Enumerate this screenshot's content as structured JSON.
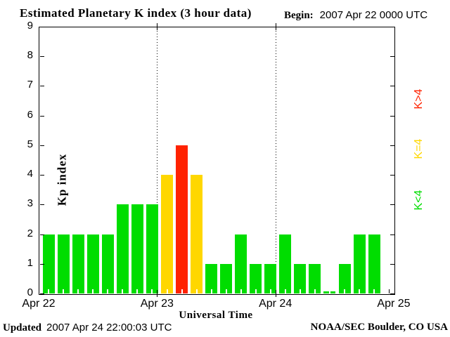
{
  "title": "Estimated Planetary K index (3 hour data)",
  "begin": {
    "label": "Begin:",
    "value": "2007 Apr 22 0000 UTC"
  },
  "axes": {
    "y_label": "Kp index",
    "x_label": "Universal Time",
    "y_ticks": [
      "0",
      "1",
      "2",
      "3",
      "4",
      "5",
      "6",
      "7",
      "8",
      "9"
    ],
    "x_ticks": [
      "Apr 22",
      "Apr 23",
      "Apr 24",
      "Apr 25"
    ]
  },
  "legend": [
    {
      "label": "K>4",
      "color": "#ff2200"
    },
    {
      "label": "K=4",
      "color": "#ffd700"
    },
    {
      "label": "K<4",
      "color": "#00dd00"
    }
  ],
  "colors": {
    "green": "#00dd00",
    "yellow": "#ffd700",
    "red": "#ff2200",
    "frame": "#000000",
    "background": "#ffffff"
  },
  "footer": {
    "updated_label": "Updated",
    "updated_value": "2007 Apr 24 22:00:03 UTC",
    "credit": "NOAA/SEC Boulder, CO USA"
  },
  "chart_data": {
    "type": "bar",
    "title": "Estimated Planetary K index (3 hour data)",
    "begin": "2007 Apr 22 0000 UTC",
    "interval_hours": 3,
    "bars_per_day": 8,
    "days": [
      "Apr 22",
      "Apr 23",
      "Apr 24"
    ],
    "values": [
      2,
      2,
      2,
      2,
      2,
      3,
      3,
      3,
      4,
      5,
      4,
      1,
      1,
      2,
      1,
      1,
      2,
      1,
      1,
      0,
      1,
      2,
      2
    ],
    "ylabel": "Kp index",
    "xlabel": "Universal Time",
    "ylim": [
      0,
      9
    ],
    "grid": "dotted vertical lines at day boundaries",
    "legend_position": "right, rotated",
    "color_rule": {
      "K<4": "green",
      "K=4": "yellow",
      "K>4": "red"
    }
  }
}
